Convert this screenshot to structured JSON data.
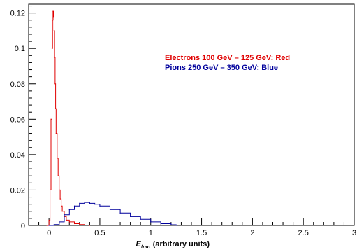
{
  "chart_data": {
    "type": "line",
    "title": "",
    "xlabel": "(arbitrary units)",
    "xlabel_symbol": "E",
    "xlabel_subscript": "frac",
    "ylabel": "",
    "xlim": [
      -0.2,
      3.0
    ],
    "ylim": [
      0,
      0.125
    ],
    "x_ticks": [
      "0",
      "0.5",
      "1",
      "1.5",
      "2",
      "2.5",
      "3"
    ],
    "y_ticks": [
      "0",
      "0.02",
      "0.04",
      "0.06",
      "0.08",
      "0.1",
      "0.12"
    ],
    "grid": false,
    "legend_placement": "top-right",
    "series": [
      {
        "name": "Electrons 100 GeV – 125 GeV: Red",
        "color": "#e00000",
        "x": [
          -0.02,
          0.0,
          0.01,
          0.02,
          0.03,
          0.035,
          0.04,
          0.045,
          0.05,
          0.055,
          0.06,
          0.065,
          0.07,
          0.08,
          0.09,
          0.1,
          0.11,
          0.12,
          0.13,
          0.15,
          0.17,
          0.2,
          0.25,
          0.3,
          0.35,
          0.4
        ],
        "y": [
          0,
          0.003,
          0.02,
          0.06,
          0.1,
          0.116,
          0.121,
          0.118,
          0.11,
          0.095,
          0.08,
          0.066,
          0.052,
          0.038,
          0.028,
          0.02,
          0.015,
          0.011,
          0.008,
          0.005,
          0.003,
          0.002,
          0.001,
          0.0005,
          0.0002,
          0
        ]
      },
      {
        "name": "Pions 250 GeV – 350 GeV: Blue",
        "color": "#00009c",
        "x": [
          0.0,
          0.05,
          0.1,
          0.15,
          0.2,
          0.25,
          0.3,
          0.35,
          0.4,
          0.45,
          0.5,
          0.6,
          0.7,
          0.8,
          0.9,
          1.0,
          1.1,
          1.2,
          1.25
        ],
        "y": [
          0,
          0.0005,
          0.002,
          0.006,
          0.009,
          0.011,
          0.0125,
          0.013,
          0.0125,
          0.012,
          0.011,
          0.009,
          0.007,
          0.005,
          0.0035,
          0.002,
          0.001,
          0.0004,
          0
        ]
      }
    ]
  }
}
